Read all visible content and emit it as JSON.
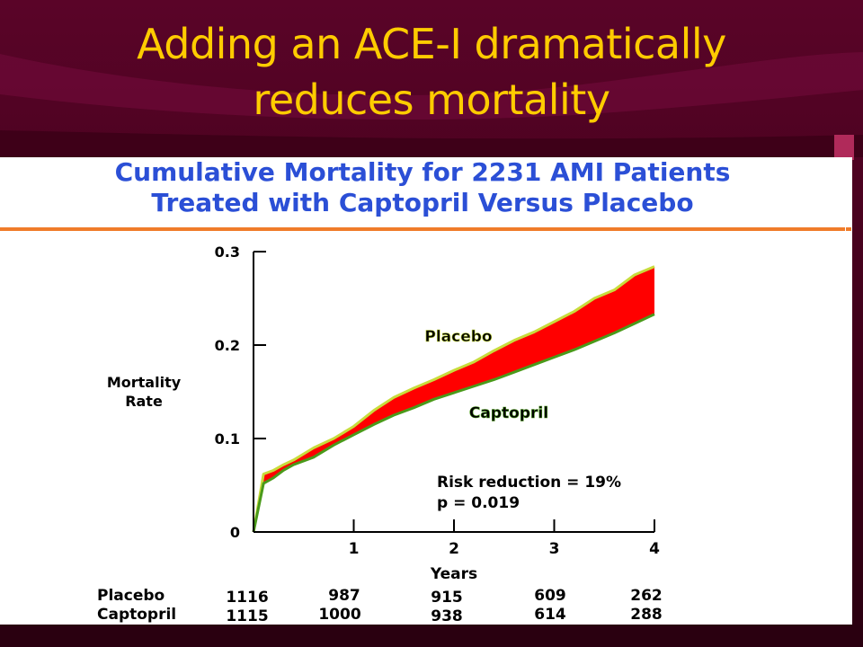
{
  "slide": {
    "title_line1": "Adding an ACE-I dramatically",
    "title_line2": "reduces mortality",
    "title_color": "#ffcc00",
    "background_color": "#4a0020"
  },
  "chart_data": {
    "type": "area",
    "title_line1": "Cumulative Mortality for 2231 AMI Patients",
    "title_line2": "Treated with Captopril Versus Placebo",
    "xlabel": "Years",
    "ylabel_line1": "Mortality",
    "ylabel_line2": "Rate",
    "xlim": [
      0,
      4
    ],
    "ylim": [
      0,
      0.3
    ],
    "x_ticks": [
      1,
      2,
      3,
      4
    ],
    "y_ticks": [
      0,
      0.1,
      0.2,
      0.3
    ],
    "y_tick_labels": [
      "0",
      "0.1",
      "0.2",
      "0.3"
    ],
    "legend": "inline labels",
    "series": [
      {
        "name": "Placebo",
        "color": "#c8dc3c",
        "x": [
          0,
          0.1,
          0.2,
          0.3,
          0.4,
          0.6,
          0.8,
          1.0,
          1.2,
          1.4,
          1.6,
          1.8,
          2.0,
          2.2,
          2.4,
          2.6,
          2.8,
          3.0,
          3.2,
          3.4,
          3.6,
          3.8,
          4.0
        ],
        "values": [
          0,
          0.062,
          0.066,
          0.072,
          0.077,
          0.09,
          0.1,
          0.113,
          0.13,
          0.144,
          0.154,
          0.163,
          0.173,
          0.182,
          0.194,
          0.205,
          0.214,
          0.225,
          0.236,
          0.25,
          0.259,
          0.275,
          0.284
        ]
      },
      {
        "name": "Captopril",
        "color": "#4a9a1a",
        "x": [
          0,
          0.1,
          0.2,
          0.3,
          0.4,
          0.6,
          0.8,
          1.0,
          1.2,
          1.4,
          1.6,
          1.8,
          2.0,
          2.2,
          2.4,
          2.6,
          2.8,
          3.0,
          3.2,
          3.4,
          3.6,
          3.8,
          4.0
        ],
        "values": [
          0,
          0.052,
          0.058,
          0.066,
          0.072,
          0.08,
          0.093,
          0.104,
          0.115,
          0.125,
          0.133,
          0.142,
          0.149,
          0.156,
          0.163,
          0.171,
          0.179,
          0.187,
          0.195,
          0.204,
          0.213,
          0.223,
          0.233
        ]
      }
    ],
    "fill_between_color": "#ff0000",
    "annotation_line1": "Risk reduction = 19%",
    "annotation_line2": "p = 0.019",
    "at_risk_table": {
      "rows": [
        {
          "label": "Placebo",
          "values": [
            "1116",
            "987",
            "915",
            "609",
            "262"
          ]
        },
        {
          "label": "Captopril",
          "values": [
            "1115",
            "1000",
            "938",
            "614",
            "288"
          ]
        }
      ]
    }
  }
}
